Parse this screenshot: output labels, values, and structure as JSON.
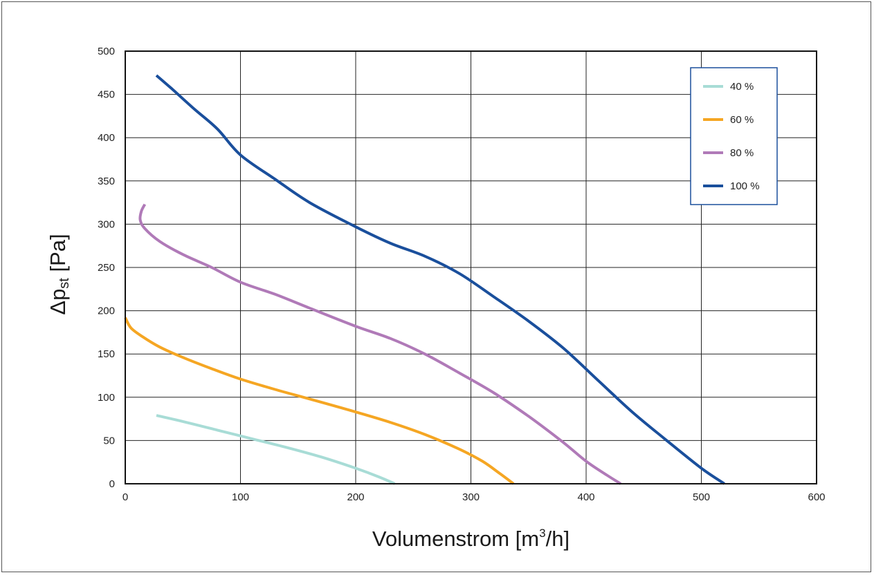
{
  "chart_data": {
    "type": "line",
    "title": "",
    "xlabel": "Volumenstrom [m³/h]",
    "xlabel_parts": {
      "main": "Volumenstrom [m",
      "sup": "3",
      "tail": "/h]"
    },
    "ylabel": "Δpst [Pa]",
    "ylabel_parts": {
      "main": "Δp",
      "sub": "st",
      "tail": " [Pa]"
    },
    "xlim": [
      0,
      600
    ],
    "ylim": [
      0,
      500
    ],
    "xticks": [
      0,
      100,
      200,
      300,
      400,
      500,
      600
    ],
    "yticks": [
      0,
      50,
      100,
      150,
      200,
      250,
      300,
      350,
      400,
      450,
      500
    ],
    "grid": true,
    "legend_position": "top-right",
    "series": [
      {
        "name": "40 %",
        "color": "#a8dcd6",
        "points": [
          [
            27,
            79
          ],
          [
            50,
            72
          ],
          [
            80,
            62
          ],
          [
            110,
            52
          ],
          [
            140,
            42
          ],
          [
            170,
            31
          ],
          [
            200,
            18
          ],
          [
            220,
            8
          ],
          [
            234,
            0
          ]
        ]
      },
      {
        "name": "60 %",
        "color": "#f5a623",
        "points": [
          [
            0,
            192
          ],
          [
            5,
            180
          ],
          [
            15,
            170
          ],
          [
            30,
            158
          ],
          [
            50,
            146
          ],
          [
            75,
            133
          ],
          [
            100,
            121
          ],
          [
            130,
            109
          ],
          [
            160,
            98
          ],
          [
            200,
            83
          ],
          [
            230,
            71
          ],
          [
            260,
            57
          ],
          [
            290,
            40
          ],
          [
            310,
            26
          ],
          [
            325,
            12
          ],
          [
            337,
            0
          ]
        ]
      },
      {
        "name": "80 %",
        "color": "#b07ab8",
        "points": [
          [
            17,
            323
          ],
          [
            14,
            315
          ],
          [
            13,
            305
          ],
          [
            17,
            295
          ],
          [
            30,
            280
          ],
          [
            50,
            265
          ],
          [
            75,
            250
          ],
          [
            100,
            233
          ],
          [
            130,
            219
          ],
          [
            160,
            203
          ],
          [
            200,
            182
          ],
          [
            230,
            168
          ],
          [
            260,
            150
          ],
          [
            290,
            128
          ],
          [
            320,
            105
          ],
          [
            350,
            78
          ],
          [
            380,
            48
          ],
          [
            400,
            26
          ],
          [
            418,
            10
          ],
          [
            430,
            0
          ]
        ]
      },
      {
        "name": "100 %",
        "color": "#1a4f9c",
        "points": [
          [
            27,
            472
          ],
          [
            40,
            457
          ],
          [
            60,
            433
          ],
          [
            80,
            410
          ],
          [
            100,
            380
          ],
          [
            130,
            352
          ],
          [
            160,
            325
          ],
          [
            200,
            297
          ],
          [
            230,
            278
          ],
          [
            260,
            263
          ],
          [
            290,
            243
          ],
          [
            320,
            216
          ],
          [
            350,
            188
          ],
          [
            380,
            157
          ],
          [
            410,
            120
          ],
          [
            440,
            83
          ],
          [
            470,
            50
          ],
          [
            500,
            18
          ],
          [
            520,
            0
          ]
        ]
      }
    ]
  }
}
